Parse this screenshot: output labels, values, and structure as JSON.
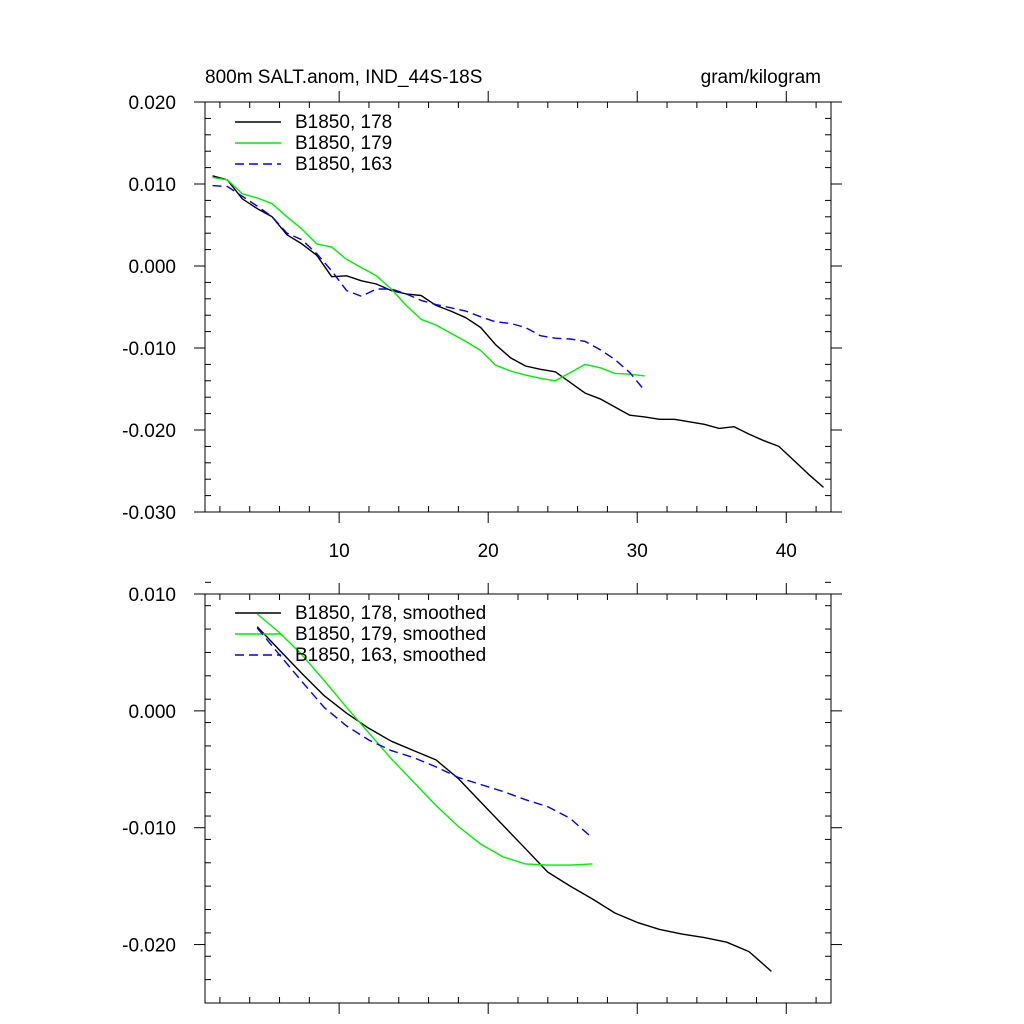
{
  "header": {
    "left_title": "800m SALT.anom, IND_44S-18S",
    "right_title": "gram/kilogram"
  },
  "chart_data": [
    {
      "type": "line",
      "ylim": [
        -0.03,
        0.02
      ],
      "xlim": [
        1,
        43
      ],
      "x_ticks": [
        10,
        20,
        30,
        40
      ],
      "x_tick_labels": [
        "10",
        "20",
        "30",
        "40"
      ],
      "y_ticks": [
        0.02,
        0.01,
        0.0,
        -0.01,
        -0.02,
        -0.03
      ],
      "y_tick_labels": [
        "0.020",
        "0.010",
        "0.000",
        "-0.010",
        "-0.020",
        "-0.030"
      ],
      "grid": false,
      "legend_position": "top-left",
      "series": [
        {
          "name": "B1850, 178",
          "color": "#000000",
          "dash": "solid",
          "x": [
            1.5,
            2.5,
            3.5,
            4.5,
            5.5,
            6.5,
            7.5,
            8.5,
            9.5,
            10.5,
            11.5,
            12.5,
            13.5,
            14.5,
            15.5,
            16.5,
            17.5,
            18.5,
            19.5,
            20.5,
            21.5,
            22.5,
            23.5,
            24.5,
            25.5,
            26.5,
            27.5,
            28.5,
            29.5,
            30.5,
            31.5,
            32.5,
            33.5,
            34.5,
            35.5,
            36.5,
            37.5,
            38.5,
            39.5,
            40.5,
            41.5,
            42.5
          ],
          "values": [
            0.011,
            0.0105,
            0.0082,
            0.007,
            0.006,
            0.0038,
            0.0027,
            0.0013,
            -0.0013,
            -0.0012,
            -0.0018,
            -0.0022,
            -0.003,
            -0.0034,
            -0.0036,
            -0.0048,
            -0.0055,
            -0.0063,
            -0.0075,
            -0.0096,
            -0.0112,
            -0.0122,
            -0.0126,
            -0.0129,
            -0.0142,
            -0.0155,
            -0.0162,
            -0.0172,
            -0.0182,
            -0.0184,
            -0.0187,
            -0.0187,
            -0.019,
            -0.0193,
            -0.0198,
            -0.0196,
            -0.0205,
            -0.0213,
            -0.022,
            -0.0237,
            -0.0254,
            -0.027
          ]
        },
        {
          "name": "B1850, 179",
          "color": "#00ee00",
          "dash": "solid",
          "x": [
            1.5,
            2.5,
            3.5,
            4.5,
            5.5,
            6.5,
            7.5,
            8.5,
            9.5,
            10.5,
            11.5,
            12.5,
            13.5,
            14.5,
            15.5,
            16.5,
            17.5,
            18.5,
            19.5,
            20.5,
            21.5,
            22.5,
            23.5,
            24.5,
            25.5,
            26.5,
            27.5,
            28.5,
            29.5,
            30.5
          ],
          "values": [
            0.0108,
            0.0105,
            0.0088,
            0.0083,
            0.0076,
            0.006,
            0.0045,
            0.0027,
            0.0023,
            0.0008,
            -0.0002,
            -0.0012,
            -0.0028,
            -0.0048,
            -0.0065,
            -0.0072,
            -0.0082,
            -0.0092,
            -0.0103,
            -0.0121,
            -0.0128,
            -0.0133,
            -0.0137,
            -0.014,
            -0.013,
            -0.012,
            -0.0124,
            -0.0131,
            -0.0132,
            -0.0134
          ]
        },
        {
          "name": "B1850, 163",
          "color": "#0000ee",
          "dash": "dashed",
          "x": [
            1.5,
            2.5,
            3.5,
            4.5,
            5.5,
            6.5,
            7.5,
            8.5,
            9.5,
            10.5,
            11.5,
            12.5,
            13.5,
            14.5,
            15.5,
            16.5,
            17.5,
            18.5,
            19.5,
            20.5,
            21.5,
            22.5,
            23.5,
            24.5,
            25.5,
            26.5,
            27.5,
            28.5,
            29.5,
            30.5
          ],
          "values": [
            0.0098,
            0.0097,
            0.0085,
            0.0073,
            0.006,
            0.004,
            0.0032,
            0.0015,
            -0.0006,
            -0.003,
            -0.0037,
            -0.0028,
            -0.0028,
            -0.0034,
            -0.0042,
            -0.0047,
            -0.0051,
            -0.0055,
            -0.0062,
            -0.0068,
            -0.007,
            -0.0075,
            -0.0085,
            -0.0088,
            -0.0089,
            -0.0092,
            -0.0102,
            -0.0114,
            -0.013,
            -0.0152
          ]
        }
      ]
    },
    {
      "type": "line",
      "ylim": [
        -0.025,
        0.01
      ],
      "xlim": [
        1,
        43
      ],
      "y_ticks": [
        0.01,
        0.0,
        -0.01,
        -0.02
      ],
      "y_tick_labels": [
        "0.010",
        "0.000",
        "-0.010",
        "-0.020"
      ],
      "grid": false,
      "legend_position": "top-left",
      "series": [
        {
          "name": "B1850, 178, smoothed",
          "color": "#000000",
          "dash": "solid",
          "x": [
            4.5,
            6,
            7.5,
            9,
            10.5,
            12,
            13.5,
            15,
            16.5,
            18,
            19.5,
            21,
            22.5,
            24,
            25.5,
            27,
            28.5,
            30,
            31.5,
            33,
            34.5,
            36,
            37.5,
            39
          ],
          "values": [
            0.0072,
            0.0052,
            0.0032,
            0.0013,
            -0.0002,
            -0.0015,
            -0.0026,
            -0.0034,
            -0.0042,
            -0.0058,
            -0.0078,
            -0.0098,
            -0.0118,
            -0.0138,
            -0.015,
            -0.0161,
            -0.0173,
            -0.0181,
            -0.0187,
            -0.0191,
            -0.0194,
            -0.0198,
            -0.0206,
            -0.0223
          ]
        },
        {
          "name": "B1850, 179, smoothed",
          "color": "#00ee00",
          "dash": "solid",
          "x": [
            4.5,
            6,
            7.5,
            9,
            10.5,
            12,
            13.5,
            15,
            16.5,
            18,
            19.5,
            21,
            22.5,
            24,
            25.5,
            27
          ],
          "values": [
            0.0083,
            0.0067,
            0.0048,
            0.0026,
            0.0003,
            -0.0019,
            -0.0041,
            -0.0061,
            -0.0081,
            -0.0099,
            -0.0114,
            -0.0125,
            -0.0131,
            -0.0132,
            -0.0132,
            -0.0131
          ]
        },
        {
          "name": "B1850, 163, smoothed",
          "color": "#0000ee",
          "dash": "dashed",
          "x": [
            4.5,
            6,
            7.5,
            9,
            10.5,
            12,
            13.5,
            15,
            16.5,
            18,
            19.5,
            21,
            22.5,
            24,
            25.5,
            27
          ],
          "values": [
            0.0071,
            0.0048,
            0.0025,
            0.0003,
            -0.0013,
            -0.0025,
            -0.0034,
            -0.004,
            -0.0048,
            -0.0057,
            -0.0063,
            -0.0069,
            -0.0076,
            -0.0082,
            -0.0092,
            -0.0109
          ]
        }
      ]
    }
  ]
}
